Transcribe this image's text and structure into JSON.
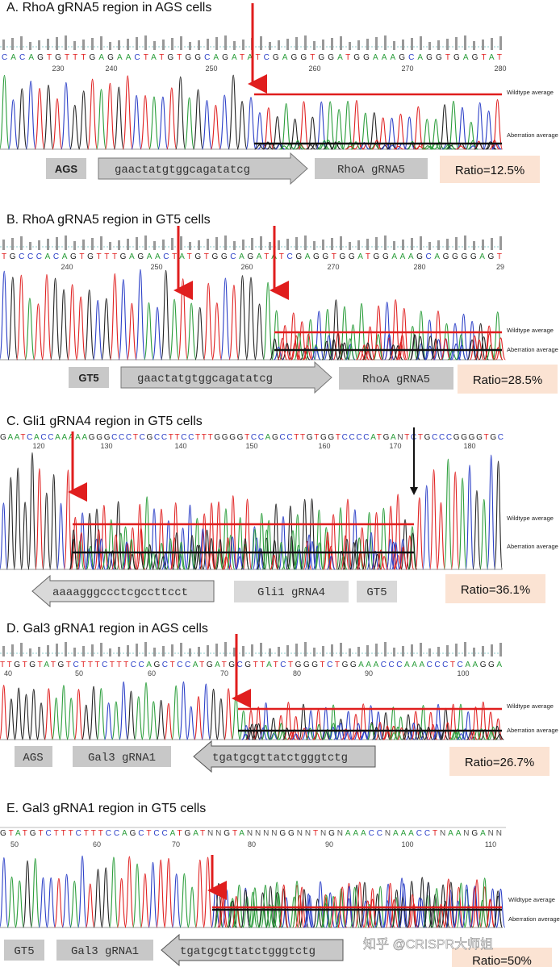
{
  "colors": {
    "A": "#2a9d3a",
    "C": "#2b3fc7",
    "G": "#222222",
    "T": "#e02020",
    "N": "#555555",
    "cut_arrow": "#e01e1e",
    "alt_arrow": "#111111",
    "wildtype_line": "#e01e1e",
    "aberration_line": "#111111",
    "ratio_box": "#fbe3d3",
    "label_box": "#c8c8c8"
  },
  "legend": {
    "wildtype": "Wildtype average",
    "aberration": "Aberration average"
  },
  "panels": [
    {
      "title": "A. RhoA gRNA5 region in AGS cells",
      "sequence": "CACAGTGTTTGAGAACTATGTGGCAGATATCGAGGTGGATGGAAAGCAGGTGAGTAT",
      "ticks": [
        "230",
        "240",
        "250",
        "260",
        "270",
        "280"
      ],
      "cell_label": "AGS",
      "guide_seq": "gaactatgtggcagatatcg",
      "guide_name": "RhoA gRNA5",
      "ratio": "Ratio=12.5%",
      "ratio_value": 12.5
    },
    {
      "title": "B. RhoA gRNA5 region in GT5 cells",
      "sequence": "TGCCCACAGTGTTTGAGAACTATGTGGCAGATATCGAGGTGGATGGAAAGCAGGGGAGT",
      "ticks": [
        "240",
        "250",
        "260",
        "270",
        "280",
        "29"
      ],
      "cell_label": "GT5",
      "guide_seq": "gaactatgtggcagatatcg",
      "guide_name": "RhoA gRNA5",
      "ratio": "Ratio=28.5%",
      "ratio_value": 28.5
    },
    {
      "title": "C. Gli1 gRNA4 region in GT5 cells",
      "sequence": "GAATCACCAAAAAGGGCCCTCGCCTTCCTTTGGGGTCCAGCCTTGTGGTCCCCATGANTCTGCCCGGGGTGC",
      "ticks": [
        "120",
        "130",
        "140",
        "150",
        "160",
        "170",
        "180"
      ],
      "cell_label": "GT5",
      "guide_seq": "aaaagggccctcgccttcct",
      "guide_name": "Gli1 gRNA4",
      "ratio": "Ratio=36.1%",
      "ratio_value": 36.1
    },
    {
      "title": "D. Gal3 gRNA1 region in AGS cells",
      "sequence": "TTGTGTATGTCTTTCTTTCCAGCTCCATGATGCGTTATCTGGGTCTGGAAACCCAAACCCTCAAGGA",
      "ticks": [
        "40",
        "50",
        "60",
        "70",
        "80",
        "90",
        "100"
      ],
      "cell_label": "AGS",
      "guide_seq": "tgatgcgttatctgggtctg",
      "guide_name": "Gal3 gRNA1",
      "ratio": "Ratio=26.7%",
      "ratio_value": 26.7
    },
    {
      "title": "E. Gal3 gRNA1 region in GT5 cells",
      "sequence": "GTATGTCTTTCTTTCCAGCTCCATGATNNGTANNNNGGNNTNGNAAACCNAAACCTNAANGANN",
      "ticks": [
        "50",
        "60",
        "70",
        "80",
        "90",
        "100",
        "110"
      ],
      "cell_label": "GT5",
      "guide_seq": "tgatgcgttatctgggtctg",
      "guide_name": "Gal3 gRNA1",
      "ratio": "Ratio=50%",
      "ratio_value": 50
    }
  ],
  "watermark": "知乎 @CRISPR大师姐"
}
